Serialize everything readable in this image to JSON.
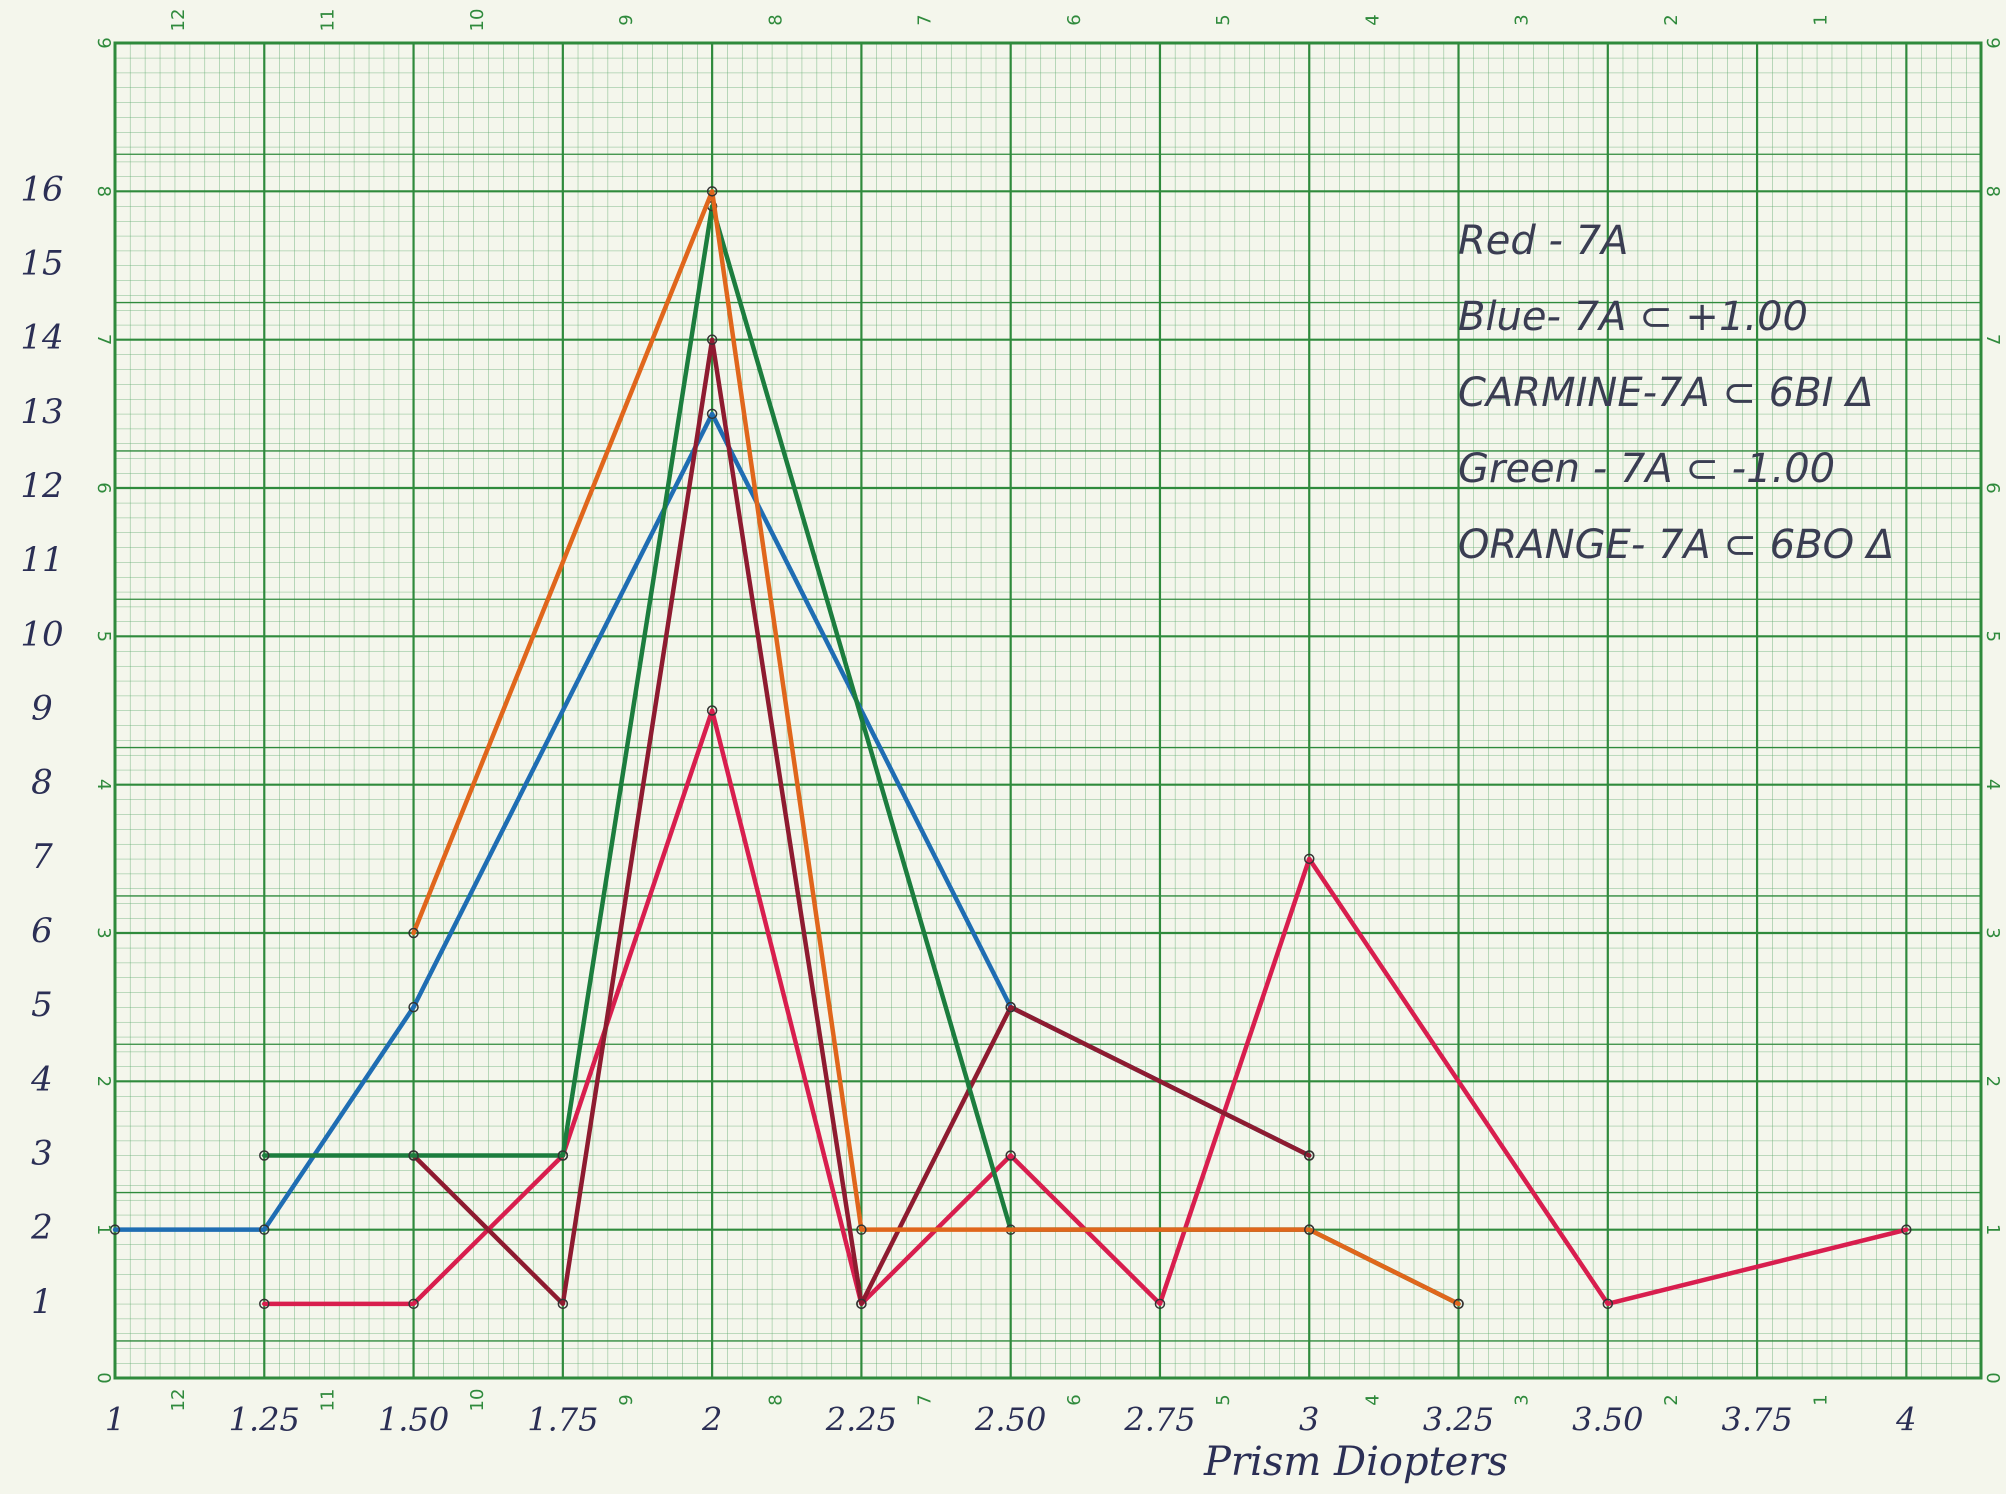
{
  "chart_data": {
    "type": "line",
    "xlabel": "Prism Diopters",
    "xlim": [
      1,
      4.125
    ],
    "xticks": [
      1,
      1.25,
      {
        "value": 1.5,
        "label": "1.50"
      },
      1.75,
      2,
      2.25,
      {
        "value": 2.5,
        "label": "2.50"
      },
      2.75,
      3,
      3.25,
      {
        "value": 3.5,
        "label": "3.50"
      },
      3.75,
      4
    ],
    "ylim": [
      0,
      18
    ],
    "yticks": [
      1,
      2,
      3,
      4,
      5,
      6,
      7,
      8,
      9,
      10,
      11,
      12,
      13,
      14,
      15,
      16
    ],
    "y2lim": [
      0,
      9
    ],
    "y2ticks": [
      0,
      1,
      2,
      3,
      4,
      5,
      6,
      7,
      8,
      9
    ],
    "x2lim": [
      12.43,
      -0.07
    ],
    "x2ticks": [
      12,
      11,
      10,
      9,
      8,
      7,
      6,
      5,
      4,
      3,
      2,
      1
    ],
    "grid": true,
    "grid_color": "#2f8a3c",
    "legend": "top-right",
    "series": [
      {
        "name": "Red - 7A",
        "color": "#d81e4e",
        "x": [
          1.25,
          1.5,
          1.75,
          2,
          2.25,
          2.5,
          2.75,
          3,
          3.5,
          4
        ],
        "values": [
          1,
          1,
          3,
          9,
          1,
          3,
          1,
          7,
          1,
          2
        ]
      },
      {
        "name": "Blue- 7A ⊂ +1.00",
        "color": "#1f6db3",
        "x": [
          1,
          1.25,
          1.5,
          2,
          2.5,
          3
        ],
        "values": [
          2,
          2,
          5,
          13,
          5,
          3
        ]
      },
      {
        "name": "CARMINE-7A ⊂ 6BI Δ",
        "color": "#8e1b30",
        "x": [
          1.5,
          1.75,
          2,
          2.25,
          2.5,
          3
        ],
        "values": [
          3,
          1,
          14,
          1,
          5,
          3
        ]
      },
      {
        "name": "Green - 7A ⊂ -1.00",
        "color": "#1c7d3e",
        "x": [
          1.25,
          1.5,
          1.75,
          2,
          2.5,
          3,
          3.25
        ],
        "values": [
          3,
          3,
          3,
          15.8,
          2,
          2,
          1
        ]
      },
      {
        "name": "ORANGE- 7A ⊂ 6BO Δ",
        "color": "#e0661c",
        "x": [
          1.5,
          2,
          2.25,
          3,
          3.25
        ],
        "values": [
          6,
          16,
          2,
          2,
          1
        ]
      }
    ]
  }
}
